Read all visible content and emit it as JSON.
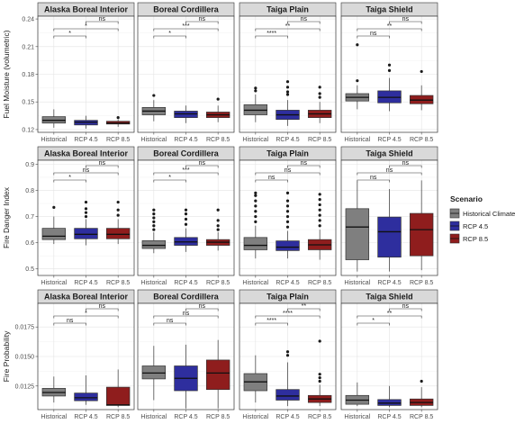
{
  "chart_data": {
    "type": "box",
    "categories": [
      "Historical",
      "RCP 4.5",
      "RCP 8.5"
    ],
    "panel_titles": [
      "Alaska Boreal Interior",
      "Boreal Cordillera",
      "Taiga Plain",
      "Taiga Shield"
    ],
    "legend": {
      "title": "Scenario",
      "items": [
        {
          "label": "Historical Climate",
          "color": "#7f7f7f"
        },
        {
          "label": "RCP 4.5",
          "color": "#2e2e9e"
        },
        {
          "label": "RCP 8.5",
          "color": "#8f1d1d"
        }
      ]
    },
    "rows": [
      {
        "ylabel": "Fuel Moisture (volumetric)",
        "ylim": [
          0.117,
          0.243
        ],
        "yticks": [
          0.12,
          0.15,
          0.18,
          0.21,
          0.24
        ],
        "ytick_labels": [
          "0.12",
          "0.15",
          "0.18",
          "0.21",
          "0.24"
        ],
        "panels": [
          {
            "boxes": [
              {
                "q1": 0.127,
                "median": 0.13,
                "q3": 0.134,
                "whislo": 0.122,
                "whishi": 0.142,
                "outliers": []
              },
              {
                "q1": 0.125,
                "median": 0.128,
                "q3": 0.13,
                "whislo": 0.121,
                "whishi": 0.135,
                "outliers": []
              },
              {
                "q1": 0.126,
                "median": 0.127,
                "q3": 0.129,
                "whislo": 0.123,
                "whishi": 0.131,
                "outliers": [
                  0.133
                ]
              }
            ],
            "comparisons": [
              {
                "label": "*",
                "from": 0,
                "to": 1,
                "level": 0
              },
              {
                "label": "*",
                "from": 0,
                "to": 2,
                "level": 1
              },
              {
                "label": "ns",
                "from": 1,
                "to": 2,
                "level": 2
              }
            ]
          },
          {
            "boxes": [
              {
                "q1": 0.136,
                "median": 0.14,
                "q3": 0.144,
                "whislo": 0.129,
                "whishi": 0.152,
                "outliers": [
                  0.157
                ]
              },
              {
                "q1": 0.133,
                "median": 0.137,
                "q3": 0.14,
                "whislo": 0.127,
                "whishi": 0.146,
                "outliers": []
              },
              {
                "q1": 0.133,
                "median": 0.136,
                "q3": 0.139,
                "whislo": 0.128,
                "whishi": 0.146,
                "outliers": [
                  0.153
                ]
              }
            ],
            "comparisons": [
              {
                "label": "*",
                "from": 0,
                "to": 1,
                "level": 0
              },
              {
                "label": "***",
                "from": 0,
                "to": 2,
                "level": 1
              },
              {
                "label": "ns",
                "from": 1,
                "to": 2,
                "level": 2
              }
            ]
          },
          {
            "boxes": [
              {
                "q1": 0.136,
                "median": 0.141,
                "q3": 0.147,
                "whislo": 0.128,
                "whishi": 0.158,
                "outliers": [
                  0.162,
                  0.165
                ]
              },
              {
                "q1": 0.131,
                "median": 0.136,
                "q3": 0.141,
                "whislo": 0.124,
                "whishi": 0.152,
                "outliers": [
                  0.158,
                  0.161,
                  0.166,
                  0.172
                ]
              },
              {
                "q1": 0.133,
                "median": 0.137,
                "q3": 0.141,
                "whislo": 0.127,
                "whishi": 0.15,
                "outliers": [
                  0.155,
                  0.159,
                  0.166
                ]
              }
            ],
            "comparisons": [
              {
                "label": "****",
                "from": 0,
                "to": 1,
                "level": 0
              },
              {
                "label": "**",
                "from": 0,
                "to": 2,
                "level": 1
              },
              {
                "label": "ns",
                "from": 1,
                "to": 2,
                "level": 2
              }
            ]
          },
          {
            "boxes": [
              {
                "q1": 0.151,
                "median": 0.155,
                "q3": 0.159,
                "whislo": 0.142,
                "whishi": 0.168,
                "outliers": [
                  0.173,
                  0.212
                ]
              },
              {
                "q1": 0.149,
                "median": 0.155,
                "q3": 0.162,
                "whislo": 0.14,
                "whishi": 0.176,
                "outliers": [
                  0.184,
                  0.19
                ]
              },
              {
                "q1": 0.148,
                "median": 0.152,
                "q3": 0.157,
                "whislo": 0.141,
                "whishi": 0.168,
                "outliers": [
                  0.183
                ]
              }
            ],
            "comparisons": [
              {
                "label": "ns",
                "from": 0,
                "to": 1,
                "level": 0
              },
              {
                "label": "**",
                "from": 0,
                "to": 2,
                "level": 1
              },
              {
                "label": "ns",
                "from": 1,
                "to": 2,
                "level": 2
              }
            ]
          }
        ]
      },
      {
        "ylabel": "Fire Danger Index",
        "ylim": [
          0.475,
          0.915
        ],
        "yticks": [
          0.5,
          0.6,
          0.7,
          0.8,
          0.9
        ],
        "ytick_labels": [
          "0.5",
          "0.6",
          "0.7",
          "0.8",
          "0.9"
        ],
        "panels": [
          {
            "boxes": [
              {
                "q1": 0.612,
                "median": 0.625,
                "q3": 0.655,
                "whislo": 0.595,
                "whishi": 0.7,
                "outliers": [
                  0.735
                ]
              },
              {
                "q1": 0.615,
                "median": 0.632,
                "q3": 0.655,
                "whislo": 0.59,
                "whishi": 0.69,
                "outliers": [
                  0.7,
                  0.715,
                  0.73,
                  0.755
                ]
              },
              {
                "q1": 0.615,
                "median": 0.632,
                "q3": 0.655,
                "whislo": 0.595,
                "whishi": 0.69,
                "outliers": [
                  0.705,
                  0.725,
                  0.755
                ]
              }
            ],
            "comparisons": [
              {
                "label": "*",
                "from": 0,
                "to": 1,
                "level": 0
              },
              {
                "label": "ns",
                "from": 0,
                "to": 2,
                "level": 1
              },
              {
                "label": "ns",
                "from": 1,
                "to": 2,
                "level": 2
              }
            ]
          },
          {
            "boxes": [
              {
                "q1": 0.578,
                "median": 0.59,
                "q3": 0.608,
                "whislo": 0.56,
                "whishi": 0.64,
                "outliers": [
                  0.65,
                  0.665,
                  0.68,
                  0.695,
                  0.71,
                  0.725
                ]
              },
              {
                "q1": 0.59,
                "median": 0.603,
                "q3": 0.62,
                "whislo": 0.565,
                "whishi": 0.655,
                "outliers": [
                  0.67,
                  0.69,
                  0.71,
                  0.725
                ]
              },
              {
                "q1": 0.59,
                "median": 0.602,
                "q3": 0.612,
                "whislo": 0.57,
                "whishi": 0.64,
                "outliers": [
                  0.65,
                  0.665,
                  0.685,
                  0.725
                ]
              }
            ],
            "comparisons": [
              {
                "label": "*",
                "from": 0,
                "to": 1,
                "level": 0
              },
              {
                "label": "***",
                "from": 0,
                "to": 2,
                "level": 1
              },
              {
                "label": "ns",
                "from": 1,
                "to": 2,
                "level": 2
              }
            ]
          },
          {
            "boxes": [
              {
                "q1": 0.573,
                "median": 0.59,
                "q3": 0.62,
                "whislo": 0.54,
                "whishi": 0.665,
                "outliers": [
                  0.68,
                  0.7,
                  0.72,
                  0.74,
                  0.76,
                  0.78,
                  0.79
                ]
              },
              {
                "q1": 0.57,
                "median": 0.583,
                "q3": 0.607,
                "whislo": 0.54,
                "whishi": 0.645,
                "outliers": [
                  0.66,
                  0.68,
                  0.7,
                  0.72,
                  0.74,
                  0.76,
                  0.79
                ]
              },
              {
                "q1": 0.573,
                "median": 0.592,
                "q3": 0.612,
                "whislo": 0.535,
                "whishi": 0.65,
                "outliers": [
                  0.665,
                  0.685,
                  0.705,
                  0.725,
                  0.745,
                  0.765,
                  0.785
                ]
              }
            ],
            "comparisons": [
              {
                "label": "ns",
                "from": 0,
                "to": 1,
                "level": 0
              },
              {
                "label": "ns",
                "from": 0,
                "to": 2,
                "level": 1
              },
              {
                "label": "ns",
                "from": 1,
                "to": 2,
                "level": 2
              }
            ]
          },
          {
            "boxes": [
              {
                "q1": 0.535,
                "median": 0.66,
                "q3": 0.73,
                "whislo": 0.49,
                "whishi": 0.835,
                "outliers": []
              },
              {
                "q1": 0.545,
                "median": 0.642,
                "q3": 0.698,
                "whislo": 0.49,
                "whishi": 0.805,
                "outliers": []
              },
              {
                "q1": 0.55,
                "median": 0.65,
                "q3": 0.712,
                "whislo": 0.495,
                "whishi": 0.838,
                "outliers": []
              }
            ],
            "comparisons": [
              {
                "label": "ns",
                "from": 0,
                "to": 1,
                "level": 0
              },
              {
                "label": "ns",
                "from": 0,
                "to": 2,
                "level": 1
              },
              {
                "label": "ns",
                "from": 1,
                "to": 2,
                "level": 2
              }
            ]
          }
        ]
      },
      {
        "ylabel": "Fire Probability",
        "ylim": [
          0.0105,
          0.0195
        ],
        "yticks": [
          0.0125,
          0.015,
          0.0175
        ],
        "ytick_labels": [
          "0.0125",
          "0.0150",
          "0.0175"
        ],
        "panels": [
          {
            "boxes": [
              {
                "q1": 0.01165,
                "median": 0.01195,
                "q3": 0.0123,
                "whislo": 0.0111,
                "whishi": 0.0133,
                "outliers": []
              },
              {
                "q1": 0.01125,
                "median": 0.0115,
                "q3": 0.0119,
                "whislo": 0.0109,
                "whishi": 0.0134,
                "outliers": []
              },
              {
                "q1": 0.01085,
                "median": 0.0109,
                "q3": 0.0124,
                "whislo": 0.0107,
                "whishi": 0.0139,
                "outliers": []
              }
            ],
            "comparisons": [
              {
                "label": "ns",
                "from": 0,
                "to": 1,
                "level": 0
              },
              {
                "label": "*",
                "from": 0,
                "to": 2,
                "level": 1
              },
              {
                "label": "ns",
                "from": 1,
                "to": 2,
                "level": 2
              }
            ]
          },
          {
            "boxes": [
              {
                "q1": 0.0131,
                "median": 0.0136,
                "q3": 0.0142,
                "whislo": 0.0113,
                "whishi": 0.0159,
                "outliers": []
              },
              {
                "q1": 0.0121,
                "median": 0.01315,
                "q3": 0.0142,
                "whislo": 0.0106,
                "whishi": 0.016,
                "outliers": []
              },
              {
                "q1": 0.0122,
                "median": 0.0136,
                "q3": 0.0147,
                "whislo": 0.0106,
                "whishi": 0.0164,
                "outliers": []
              }
            ],
            "comparisons": [
              {
                "label": "ns",
                "from": 0,
                "to": 1,
                "level": 0
              },
              {
                "label": "ns",
                "from": 0,
                "to": 2,
                "level": 1
              },
              {
                "label": "ns",
                "from": 1,
                "to": 2,
                "level": 2
              }
            ]
          },
          {
            "boxes": [
              {
                "q1": 0.0121,
                "median": 0.01285,
                "q3": 0.01355,
                "whislo": 0.0111,
                "whishi": 0.0151,
                "outliers": []
              },
              {
                "q1": 0.0113,
                "median": 0.01165,
                "q3": 0.0122,
                "whislo": 0.0108,
                "whishi": 0.0145,
                "outliers": [
                  0.0151,
                  0.0154
                ]
              },
              {
                "q1": 0.0111,
                "median": 0.0114,
                "q3": 0.0117,
                "whislo": 0.0108,
                "whishi": 0.0126,
                "outliers": [
                  0.0129,
                  0.0132,
                  0.0135,
                  0.0163
                ]
              }
            ],
            "comparisons": [
              {
                "label": "****",
                "from": 0,
                "to": 1,
                "level": 0
              },
              {
                "label": "****",
                "from": 0,
                "to": 2,
                "level": 1
              },
              {
                "label": "**",
                "from": 1,
                "to": 2,
                "level": 2
              }
            ]
          },
          {
            "boxes": [
              {
                "q1": 0.01095,
                "median": 0.0113,
                "q3": 0.0117,
                "whislo": 0.0108,
                "whishi": 0.0128,
                "outliers": []
              },
              {
                "q1": 0.01085,
                "median": 0.01105,
                "q3": 0.01135,
                "whislo": 0.0107,
                "whishi": 0.0125,
                "outliers": []
              },
              {
                "q1": 0.01085,
                "median": 0.0111,
                "q3": 0.0114,
                "whislo": 0.0107,
                "whishi": 0.0124,
                "outliers": [
                  0.0129
                ]
              }
            ],
            "comparisons": [
              {
                "label": "*",
                "from": 0,
                "to": 1,
                "level": 0
              },
              {
                "label": "**",
                "from": 0,
                "to": 2,
                "level": 1
              },
              {
                "label": "ns",
                "from": 1,
                "to": 2,
                "level": 2
              }
            ]
          }
        ]
      }
    ]
  }
}
